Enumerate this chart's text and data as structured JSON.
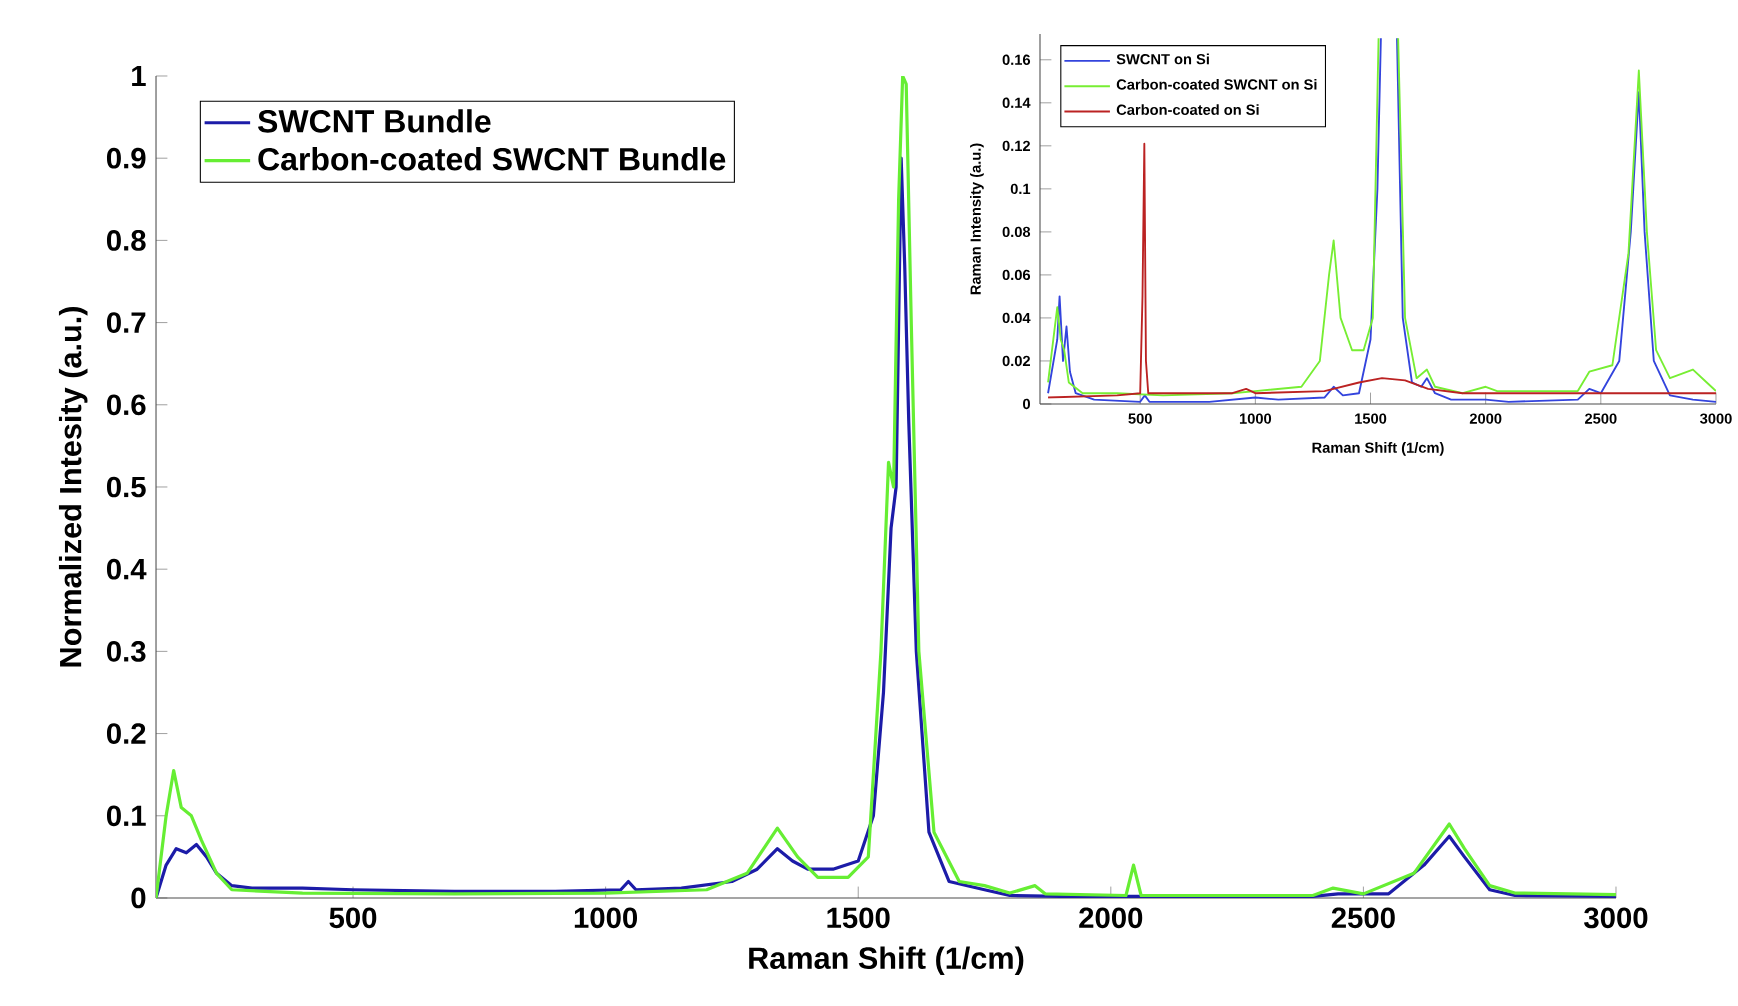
{
  "chart_data": [
    {
      "type": "line",
      "xlabel": "Raman Shift (1/cm)",
      "ylabel": "Normalized Intesity (a.u.)",
      "xlim": [
        110,
        3000
      ],
      "ylim": [
        0,
        1
      ],
      "xticks": [
        500,
        1000,
        1500,
        2000,
        2500,
        3000
      ],
      "yticks": [
        0,
        0.1,
        0.2,
        0.3,
        0.4,
        0.5,
        0.6,
        0.7,
        0.8,
        0.9,
        1
      ],
      "legend": "top left",
      "marker": "none",
      "line_style": "solid",
      "series": [
        {
          "name": "SWCNT Bundle",
          "color": "#1c1ca8",
          "x": [
            110,
            130,
            150,
            170,
            190,
            210,
            230,
            260,
            300,
            400,
            500,
            700,
            900,
            1030,
            1045,
            1060,
            1150,
            1250,
            1300,
            1340,
            1370,
            1400,
            1450,
            1500,
            1530,
            1550,
            1565,
            1575,
            1585,
            1592,
            1600,
            1615,
            1640,
            1680,
            1750,
            1800,
            1900,
            2000,
            2100,
            2400,
            2450,
            2550,
            2620,
            2670,
            2700,
            2750,
            2800,
            3000
          ],
          "values": [
            0,
            0.04,
            0.06,
            0.055,
            0.065,
            0.05,
            0.03,
            0.015,
            0.012,
            0.012,
            0.01,
            0.008,
            0.008,
            0.01,
            0.02,
            0.01,
            0.012,
            0.02,
            0.035,
            0.06,
            0.045,
            0.035,
            0.035,
            0.045,
            0.1,
            0.25,
            0.45,
            0.5,
            0.9,
            0.77,
            0.58,
            0.3,
            0.08,
            0.02,
            0.01,
            0.003,
            0.002,
            0.002,
            0.002,
            0.002,
            0.005,
            0.005,
            0.04,
            0.075,
            0.05,
            0.01,
            0.003,
            0.002
          ]
        },
        {
          "name": "Carbon-coated SWCNT Bundle",
          "color": "#66ee33",
          "x": [
            110,
            130,
            145,
            160,
            180,
            200,
            230,
            260,
            400,
            700,
            1000,
            1200,
            1280,
            1340,
            1380,
            1420,
            1480,
            1520,
            1545,
            1560,
            1570,
            1580,
            1588,
            1595,
            1605,
            1620,
            1650,
            1700,
            1750,
            1800,
            1850,
            1870,
            2030,
            2045,
            2060,
            2400,
            2440,
            2500,
            2600,
            2670,
            2700,
            2750,
            2800,
            3000
          ],
          "values": [
            0,
            0.1,
            0.155,
            0.11,
            0.1,
            0.07,
            0.03,
            0.01,
            0.006,
            0.005,
            0.006,
            0.01,
            0.03,
            0.085,
            0.05,
            0.025,
            0.025,
            0.05,
            0.3,
            0.53,
            0.5,
            0.85,
            1.0,
            0.99,
            0.7,
            0.3,
            0.08,
            0.02,
            0.015,
            0.006,
            0.015,
            0.005,
            0.003,
            0.04,
            0.003,
            0.003,
            0.012,
            0.005,
            0.03,
            0.09,
            0.06,
            0.015,
            0.006,
            0.004
          ]
        }
      ]
    },
    {
      "type": "line",
      "xlabel": "Raman Shift (1/cm)",
      "ylabel": "Raman Intensity (a.u.)",
      "xlim": [
        65,
        3000
      ],
      "ylim": [
        0,
        0.172
      ],
      "xticks": [
        500,
        1000,
        1500,
        2000,
        2500,
        3000
      ],
      "yticks": [
        0,
        0.02,
        0.04,
        0.06,
        0.08,
        0.1,
        0.12,
        0.14,
        0.16
      ],
      "legend": "top left",
      "marker": "none",
      "line_style": "solid",
      "series": [
        {
          "name": "SWCNT on Si",
          "color": "#3344dd",
          "x": [
            100,
            140,
            150,
            165,
            180,
            195,
            220,
            300,
            500,
            520,
            540,
            800,
            1000,
            1100,
            1300,
            1340,
            1380,
            1450,
            1500,
            1530,
            1545,
            1560,
            1600,
            1615,
            1640,
            1680,
            1720,
            1745,
            1780,
            1850,
            2000,
            2100,
            2400,
            2450,
            2500,
            2580,
            2630,
            2665,
            2690,
            2730,
            2800,
            2900,
            3000
          ],
          "values": [
            0.005,
            0.03,
            0.05,
            0.02,
            0.036,
            0.015,
            0.005,
            0.002,
            0.001,
            0.004,
            0.001,
            0.001,
            0.003,
            0.002,
            0.003,
            0.008,
            0.004,
            0.005,
            0.03,
            0.1,
            0.17,
            null,
            null,
            0.17,
            0.04,
            0.01,
            0.008,
            0.012,
            0.005,
            0.002,
            0.002,
            0.001,
            0.002,
            0.007,
            0.005,
            0.02,
            0.08,
            0.145,
            0.08,
            0.02,
            0.004,
            0.002,
            0.001
          ]
        },
        {
          "name": "Carbon-coated SWCNT on Si",
          "color": "#77ee33",
          "x": [
            100,
            140,
            155,
            170,
            190,
            250,
            400,
            600,
            900,
            1000,
            1200,
            1280,
            1320,
            1340,
            1370,
            1420,
            1470,
            1510,
            1535,
            1545,
            1610,
            1620,
            1650,
            1700,
            1745,
            1780,
            1900,
            2000,
            2050,
            2400,
            2450,
            2550,
            2620,
            2665,
            2700,
            2740,
            2800,
            2900,
            2960,
            3000
          ],
          "values": [
            0.01,
            0.045,
            0.03,
            0.025,
            0.01,
            0.005,
            0.005,
            0.004,
            0.005,
            0.006,
            0.008,
            0.02,
            0.06,
            0.076,
            0.04,
            0.025,
            0.025,
            0.04,
            0.17,
            null,
            null,
            0.17,
            0.04,
            0.012,
            0.016,
            0.008,
            0.005,
            0.008,
            0.006,
            0.006,
            0.015,
            0.018,
            0.07,
            0.155,
            0.08,
            0.025,
            0.012,
            0.016,
            0.01,
            0.006
          ]
        },
        {
          "name": "Carbon-coated on Si",
          "color": "#bb2222",
          "x": [
            100,
            400,
            500,
            510,
            518,
            525,
            535,
            900,
            960,
            1000,
            1300,
            1450,
            1550,
            1650,
            1750,
            1900,
            2500,
            3000
          ],
          "values": [
            0.003,
            0.004,
            0.005,
            0.05,
            0.121,
            0.02,
            0.005,
            0.005,
            0.007,
            0.005,
            0.006,
            0.01,
            0.012,
            0.011,
            0.007,
            0.005,
            0.005,
            0.005
          ]
        }
      ]
    }
  ]
}
